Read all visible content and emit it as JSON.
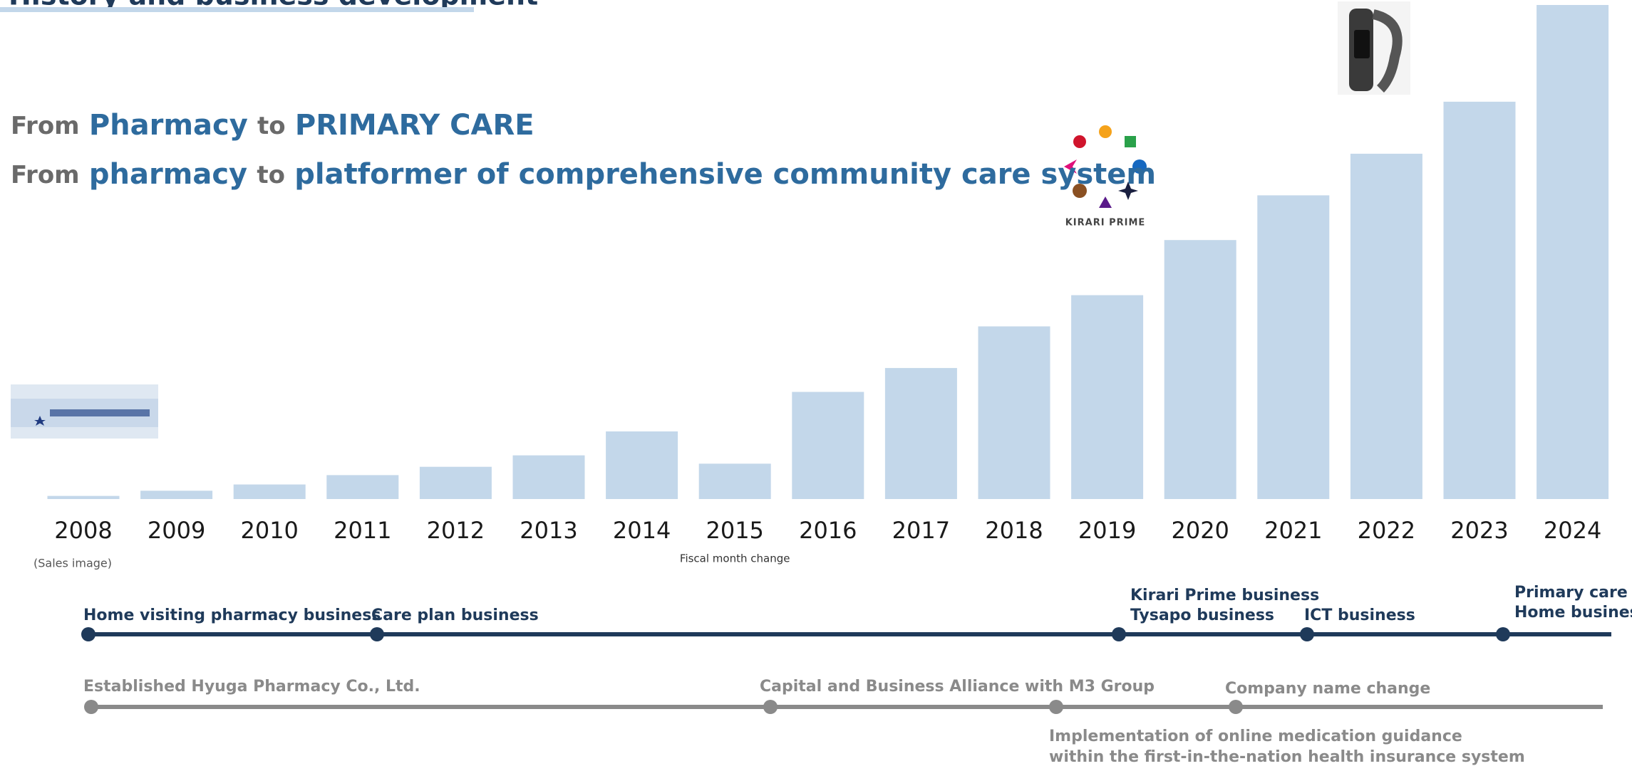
{
  "header": {
    "title": "History and business development"
  },
  "taglines": [
    {
      "parts": [
        "From",
        "Pharmacy",
        "to",
        "PRIMARY CARE"
      ]
    },
    {
      "parts": [
        "From",
        "pharmacy",
        "to",
        "platformer of comprehensive community care system"
      ]
    }
  ],
  "chart_data": {
    "type": "bar",
    "categories": [
      "2008",
      "2009",
      "2010",
      "2011",
      "2012",
      "2013",
      "2014",
      "2015",
      "2016",
      "2017",
      "2018",
      "2019",
      "2020",
      "2021",
      "2022",
      "2023",
      "2024"
    ],
    "values": [
      3,
      8,
      14,
      23,
      31,
      42,
      65,
      34,
      103,
      126,
      166,
      196,
      249,
      292,
      332,
      382,
      475
    ],
    "color": "#c3d7ea",
    "note": "(Sales image)",
    "annotation": "Fiscal month change"
  },
  "logo_text": "KIRARI PRIME",
  "timeline_business": [
    {
      "lines": [
        "Home visiting pharmacy business"
      ]
    },
    {
      "lines": [
        "Care plan business"
      ]
    },
    {
      "lines": [
        "Kirari Prime business",
        "Tysapo business"
      ]
    },
    {
      "lines": [
        "ICT business"
      ]
    },
    {
      "lines": [
        "Primary care",
        "Home business"
      ]
    }
  ],
  "timeline_corporate": [
    {
      "lines": [
        "Established Hyuga Pharmacy Co., Ltd."
      ]
    },
    {
      "lines": [
        "Capital and Business Alliance with M3 Group"
      ]
    },
    {
      "lines": [
        "Implementation of online medication guidance",
        "within the first-in-the-nation health insurance system"
      ]
    },
    {
      "lines": [
        "Company name change"
      ]
    }
  ]
}
